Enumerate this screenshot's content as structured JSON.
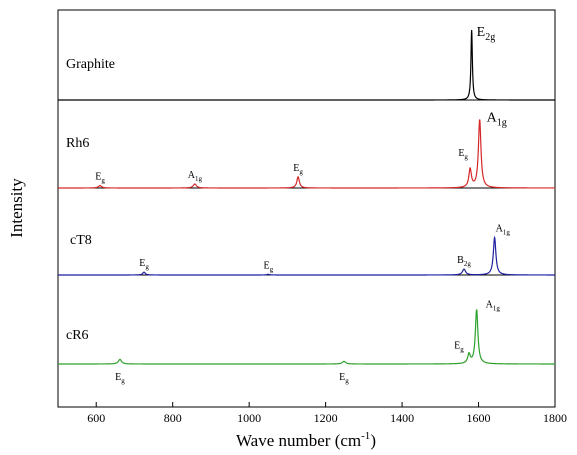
{
  "chart_data": {
    "type": "line",
    "xlabel": "Wave number (cm⁻¹)",
    "xlabel_parts": {
      "base": "Wave number (cm",
      "sup": "-1",
      "close": ")"
    },
    "ylabel": "Intensity",
    "xlim": [
      500,
      1800
    ],
    "xticks": [
      600,
      800,
      1000,
      1200,
      1400,
      1600,
      1800
    ],
    "panels": [
      {
        "name": "Graphite",
        "color": "#000000",
        "peaks": [
          {
            "x": 1582,
            "height": 1.0,
            "width": 2.2
          }
        ],
        "labels": [
          {
            "x": 1582,
            "main": "E",
            "sub": "2g",
            "size": "large"
          }
        ]
      },
      {
        "name": "Rh6",
        "color": "#d62728",
        "peaks": [
          {
            "x": 610,
            "height": 0.03,
            "width": 5
          },
          {
            "x": 858,
            "height": 0.05,
            "width": 5
          },
          {
            "x": 1128,
            "height": 0.14,
            "width": 4
          },
          {
            "x": 1578,
            "height": 0.23,
            "width": 4
          },
          {
            "x": 1603,
            "height": 0.85,
            "width": 4
          }
        ],
        "labels": [
          {
            "x": 610,
            "main": "E",
            "sub": "g",
            "size": "small"
          },
          {
            "x": 858,
            "main": "A",
            "sub": "1g",
            "size": "small"
          },
          {
            "x": 1128,
            "main": "E",
            "sub": "g",
            "size": "small"
          },
          {
            "x": 1578,
            "main": "E",
            "sub": "g",
            "size": "small"
          },
          {
            "x": 1603,
            "main": "A",
            "sub": "1g",
            "size": "large"
          }
        ]
      },
      {
        "name": "cT8",
        "color": "#1f1fa0",
        "peaks": [
          {
            "x": 725,
            "height": 0.06,
            "width": 4
          },
          {
            "x": 1050,
            "height": 0.015,
            "width": 4
          },
          {
            "x": 1562,
            "height": 0.12,
            "width": 5
          },
          {
            "x": 1642,
            "height": 0.78,
            "width": 4
          }
        ],
        "labels": [
          {
            "x": 725,
            "main": "E",
            "sub": "g",
            "size": "small"
          },
          {
            "x": 1050,
            "main": "E",
            "sub": "g",
            "size": "small"
          },
          {
            "x": 1562,
            "main": "B",
            "sub": "2g",
            "size": "small"
          },
          {
            "x": 1642,
            "main": "A",
            "sub": "1g",
            "size": "small"
          }
        ]
      },
      {
        "name": "cR6",
        "color": "#2ca02c",
        "peaks": [
          {
            "x": 662,
            "height": 0.07,
            "width": 5
          },
          {
            "x": 1248,
            "height": 0.04,
            "width": 5
          },
          {
            "x": 1575,
            "height": 0.14,
            "width": 4
          },
          {
            "x": 1595,
            "height": 0.82,
            "width": 4
          }
        ],
        "labels": [
          {
            "x": 662,
            "main": "E",
            "sub": "g",
            "size": "small"
          },
          {
            "x": 1248,
            "main": "E",
            "sub": "g",
            "size": "small"
          },
          {
            "x": 1575,
            "main": "E",
            "sub": "g",
            "size": "small"
          },
          {
            "x": 1595,
            "main": "A",
            "sub": "1g",
            "size": "small"
          }
        ]
      }
    ]
  }
}
